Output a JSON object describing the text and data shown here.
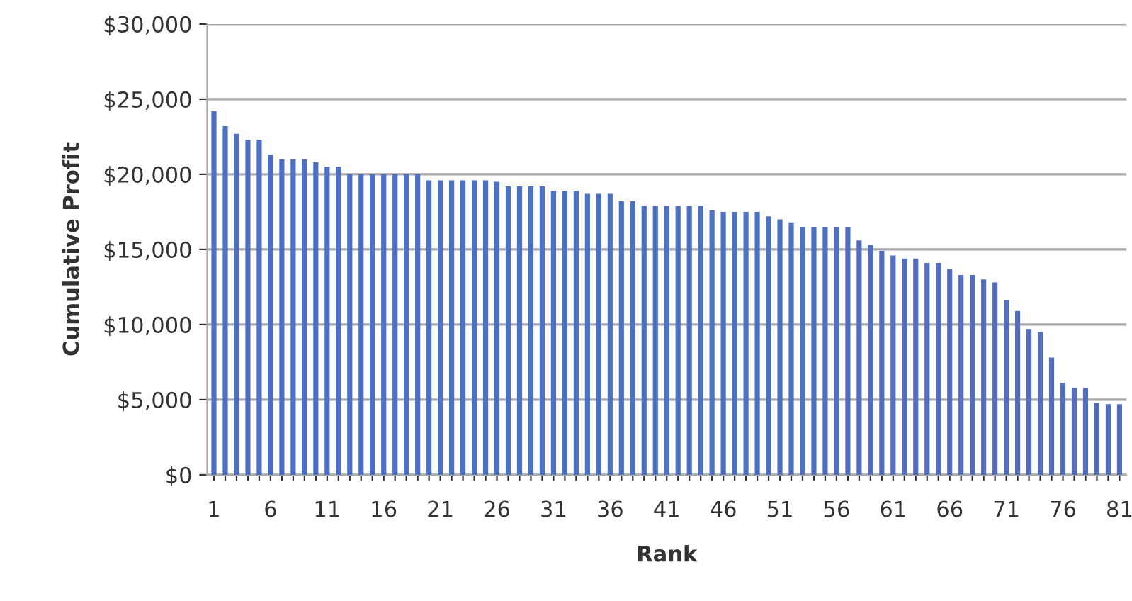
{
  "chart_data": {
    "type": "bar",
    "xlabel": "Rank",
    "ylabel": "Cumulative Profit",
    "categories": [
      "1",
      null,
      null,
      null,
      null,
      "6",
      null,
      null,
      null,
      null,
      "11",
      null,
      null,
      null,
      null,
      "16",
      null,
      null,
      null,
      null,
      "21",
      null,
      null,
      null,
      null,
      "26",
      null,
      null,
      null,
      null,
      "31",
      null,
      null,
      null,
      null,
      "36",
      null,
      null,
      null,
      null,
      "41",
      null,
      null,
      null,
      null,
      "46",
      null,
      null,
      null,
      null,
      "51",
      null,
      null,
      null,
      null,
      "56",
      null,
      null,
      null,
      null,
      "61",
      null,
      null,
      null,
      null,
      "66",
      null,
      null,
      null,
      null,
      "71",
      null,
      null,
      null,
      null,
      "76",
      null,
      null,
      null,
      null,
      "81"
    ],
    "values": [
      24200,
      23200,
      22700,
      22300,
      22300,
      21300,
      21000,
      21000,
      21000,
      20800,
      20500,
      20500,
      20000,
      20000,
      20000,
      20000,
      20000,
      20000,
      20000,
      19600,
      19600,
      19600,
      19600,
      19600,
      19600,
      19500,
      19200,
      19200,
      19200,
      19200,
      18900,
      18900,
      18900,
      18700,
      18700,
      18700,
      18200,
      18200,
      17900,
      17900,
      17900,
      17900,
      17900,
      17900,
      17600,
      17500,
      17500,
      17500,
      17500,
      17200,
      17000,
      16800,
      16500,
      16500,
      16500,
      16500,
      16500,
      15600,
      15300,
      14900,
      14600,
      14400,
      14400,
      14100,
      14100,
      13700,
      13300,
      13300,
      13000,
      12800,
      11600,
      10900,
      9700,
      9500,
      7800,
      6100,
      5800,
      5800,
      4800,
      4700,
      4700
    ],
    "color": "#4f6fc4",
    "ylim": [
      0,
      30000
    ],
    "yticks": [
      {
        "value": 0,
        "label": "$0"
      },
      {
        "value": 5000,
        "label": "$5,000"
      },
      {
        "value": 10000,
        "label": "$10,000"
      },
      {
        "value": 15000,
        "label": "$15,000"
      },
      {
        "value": 20000,
        "label": "$20,000"
      },
      {
        "value": 25000,
        "label": "$25,000"
      },
      {
        "value": 30000,
        "label": "$30,000"
      }
    ],
    "grid": "y"
  }
}
